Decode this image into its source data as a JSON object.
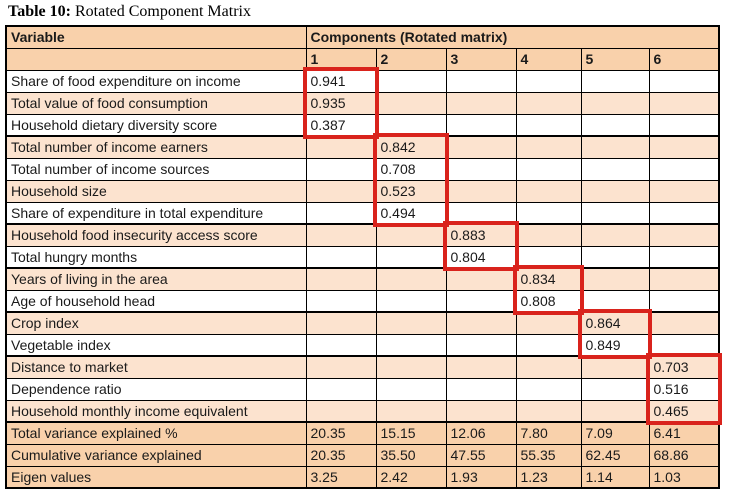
{
  "title": {
    "label_bold": "Table 10:",
    "label_rest": " Rotated Component Matrix"
  },
  "table": {
    "header": {
      "variable": "Variable",
      "components": "Components (Rotated matrix)",
      "component_numbers": [
        "1",
        "2",
        "3",
        "4",
        "5",
        "6"
      ]
    },
    "rows": [
      {
        "label": "Share of food expenditure on income",
        "component": 1,
        "value": "0.941"
      },
      {
        "label": "Total value of food consumption",
        "component": 1,
        "value": "0.935"
      },
      {
        "label": "Household dietary diversity score",
        "component": 1,
        "value": "0.387"
      },
      {
        "label": "Total number of income earners",
        "component": 2,
        "value": "0.842"
      },
      {
        "label": "Total number of income sources",
        "component": 2,
        "value": "0.708"
      },
      {
        "label": "Household size",
        "component": 2,
        "value": "0.523"
      },
      {
        "label": "Share of expenditure in total expenditure",
        "component": 2,
        "value": "0.494"
      },
      {
        "label": "Household food insecurity access score",
        "component": 3,
        "value": "0.883"
      },
      {
        "label": "Total hungry months",
        "component": 3,
        "value": "0.804"
      },
      {
        "label": "Years of living in the area",
        "component": 4,
        "value": "0.834"
      },
      {
        "label": "Age of household head",
        "component": 4,
        "value": "0.808"
      },
      {
        "label": "Crop index",
        "component": 5,
        "value": "0.864"
      },
      {
        "label": "Vegetable index",
        "component": 5,
        "value": "0.849"
      },
      {
        "label": "Distance to market",
        "component": 6,
        "value": "0.703"
      },
      {
        "label": "Dependence ratio",
        "component": 6,
        "value": "0.516"
      },
      {
        "label": "Household monthly income equivalent",
        "component": 6,
        "value": "0.465"
      }
    ],
    "footer": [
      {
        "label": "Total variance explained %",
        "values": [
          "20.35",
          "15.15",
          "12.06",
          "7.80",
          "7.09",
          "6.41"
        ]
      },
      {
        "label": "Cumulative variance explained",
        "values": [
          "20.35",
          "35.50",
          "47.55",
          "55.35",
          "62.45",
          "68.86"
        ]
      },
      {
        "label": "Eigen values",
        "values": [
          "3.25",
          "2.42",
          "1.93",
          "1.23",
          "1.14",
          "1.03"
        ]
      }
    ]
  },
  "colors": {
    "header_bg": "#f9d1ab",
    "row_alt_bg": "#fce3cf",
    "footer_bg": "#f9d1ab",
    "grid_border": "#000000",
    "highlight_border": "#d9231c",
    "text": "#1a1a1a"
  }
}
